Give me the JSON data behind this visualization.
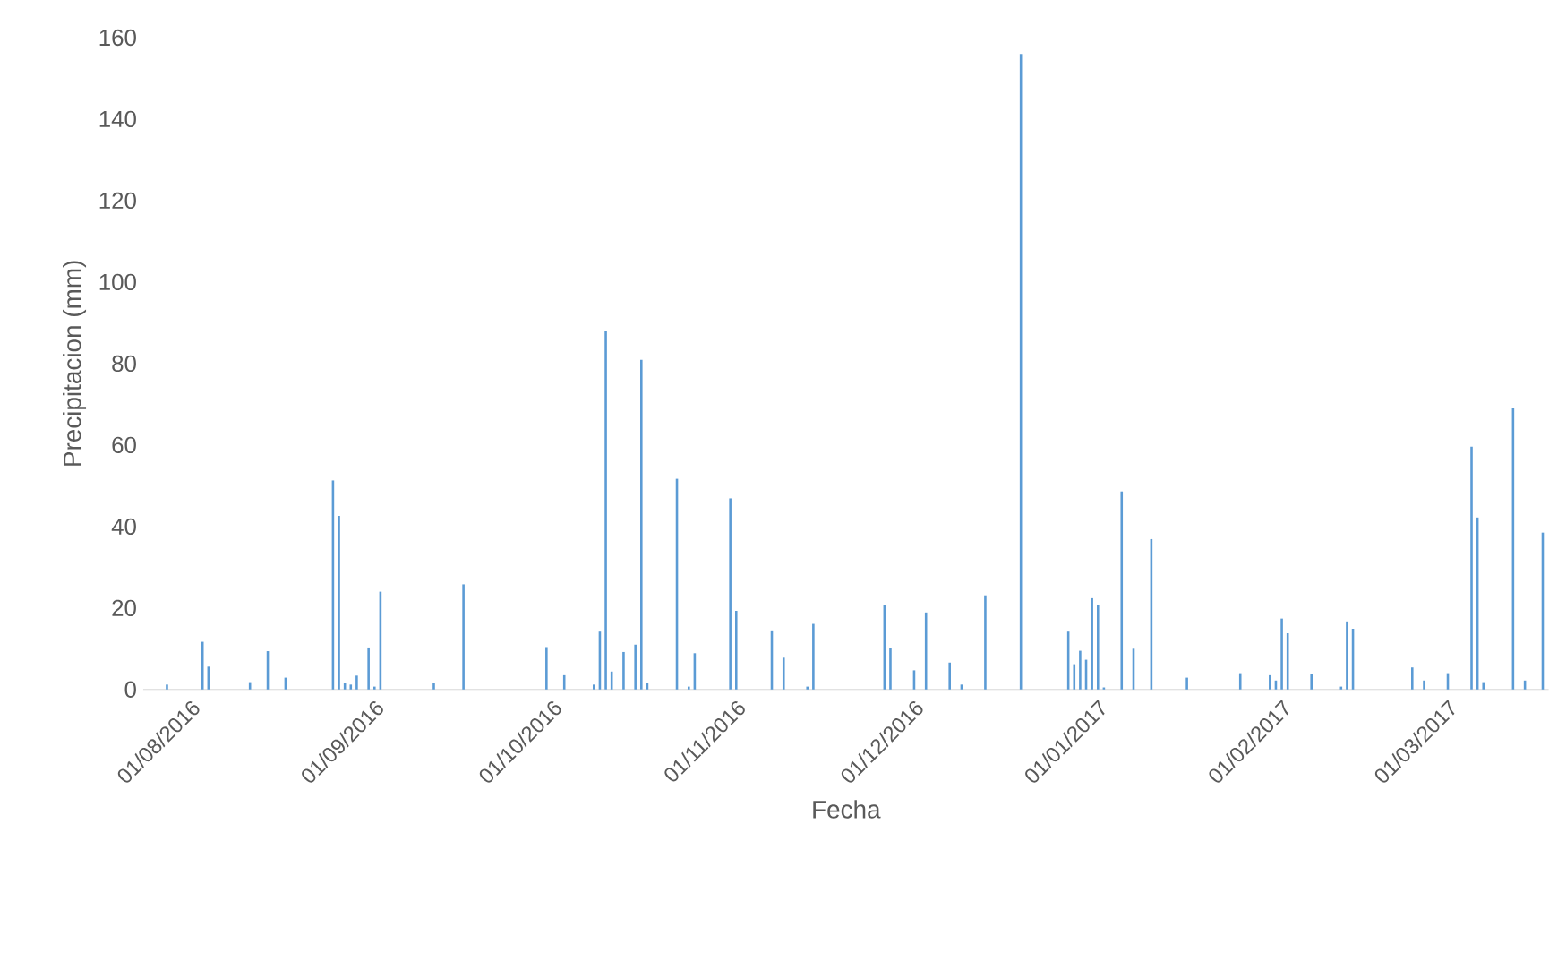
{
  "chart_data": {
    "type": "bar",
    "xlabel": "Fecha",
    "ylabel": "Precipitacion (mm)",
    "color": "#5b9bd5",
    "x": [
      "2016-07-28",
      "2016-08-03",
      "2016-08-04",
      "2016-08-11",
      "2016-08-14",
      "2016-08-17",
      "2016-08-25",
      "2016-08-26",
      "2016-08-27",
      "2016-08-28",
      "2016-08-29",
      "2016-08-31",
      "2016-09-01",
      "2016-09-02",
      "2016-09-11",
      "2016-09-16",
      "2016-09-30",
      "2016-10-03",
      "2016-10-08",
      "2016-10-09",
      "2016-10-10",
      "2016-10-11",
      "2016-10-13",
      "2016-10-15",
      "2016-10-16",
      "2016-10-17",
      "2016-10-22",
      "2016-10-24",
      "2016-10-25",
      "2016-10-31",
      "2016-11-01",
      "2016-11-07",
      "2016-11-09",
      "2016-11-13",
      "2016-11-14",
      "2016-11-26",
      "2016-11-27",
      "2016-12-01",
      "2016-12-03",
      "2016-12-07",
      "2016-12-09",
      "2016-12-13",
      "2016-12-19",
      "2016-12-27",
      "2016-12-28",
      "2016-12-29",
      "2016-12-30",
      "2016-12-31",
      "2017-01-01",
      "2017-01-02",
      "2017-01-05",
      "2017-01-07",
      "2017-01-10",
      "2017-01-16",
      "2017-01-25",
      "2017-01-30",
      "2017-01-31",
      "2017-02-01",
      "2017-02-02",
      "2017-02-06",
      "2017-02-11",
      "2017-02-12",
      "2017-02-13",
      "2017-02-23",
      "2017-02-25",
      "2017-03-01",
      "2017-03-05",
      "2017-03-06",
      "2017-03-07",
      "2017-03-12",
      "2017-03-14",
      "2017-03-17"
    ],
    "values": [
      1.2,
      11.7,
      5.6,
      1.8,
      9.4,
      2.9,
      51.3,
      42.6,
      1.5,
      1.2,
      3.4,
      10.3,
      0.7,
      24.0,
      1.5,
      25.8,
      10.4,
      3.5,
      1.2,
      14.2,
      87.9,
      4.4,
      9.2,
      11.0,
      80.9,
      1.5,
      51.7,
      0.7,
      8.9,
      46.9,
      19.3,
      14.5,
      7.8,
      0.7,
      16.1,
      20.8,
      10.1,
      4.7,
      18.9,
      6.6,
      1.2,
      23.1,
      156.0,
      14.2,
      6.2,
      9.5,
      7.3,
      22.4,
      20.7,
      0.5,
      48.6,
      10.0,
      36.9,
      2.9,
      4.0,
      3.5,
      2.2,
      17.4,
      13.8,
      3.8,
      0.7,
      16.7,
      14.9,
      5.4,
      2.2,
      4.0,
      59.6,
      42.2,
      1.8,
      69.0,
      2.2,
      38.5
    ],
    "xlim": [
      "2016-07-24",
      "2017-03-18"
    ],
    "ylim": [
      0,
      160
    ],
    "yticks": [
      0,
      20,
      40,
      60,
      80,
      100,
      120,
      140,
      160
    ],
    "xticks": [
      {
        "value": "2016-08-01",
        "label": "01/08/2016"
      },
      {
        "value": "2016-09-01",
        "label": "01/09/2016"
      },
      {
        "value": "2016-10-01",
        "label": "01/10/2016"
      },
      {
        "value": "2016-11-01",
        "label": "01/11/2016"
      },
      {
        "value": "2016-12-01",
        "label": "01/12/2016"
      },
      {
        "value": "2017-01-01",
        "label": "01/01/2017"
      },
      {
        "value": "2017-02-01",
        "label": "01/02/2017"
      },
      {
        "value": "2017-03-01",
        "label": "01/03/2017"
      }
    ]
  }
}
